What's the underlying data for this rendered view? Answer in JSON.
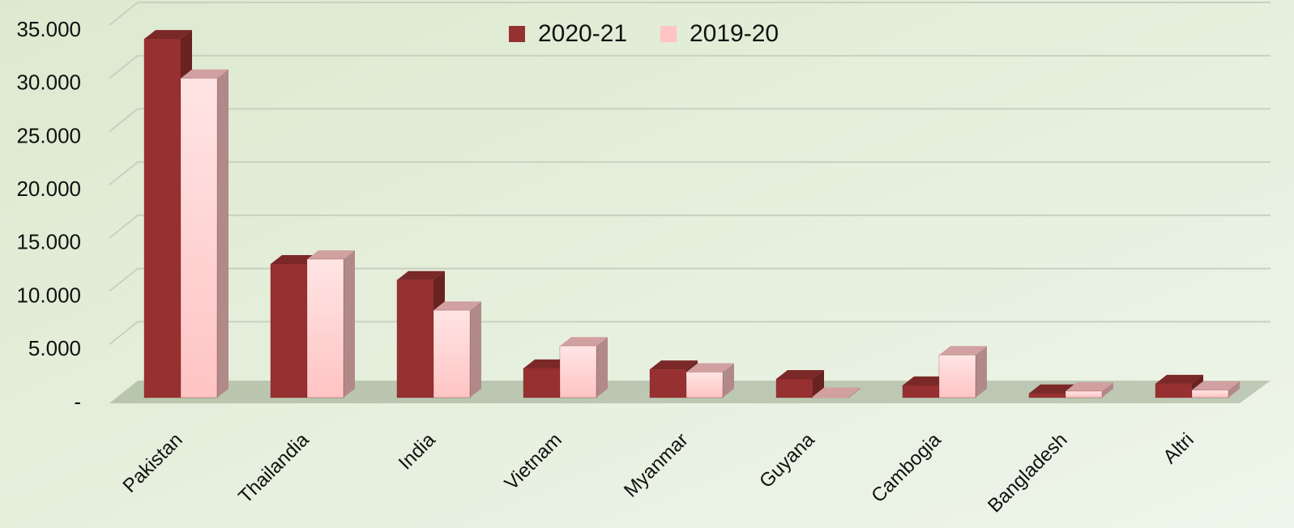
{
  "chart_data": {
    "type": "bar3d",
    "categories": [
      "Pakistan",
      "Thailandia",
      "India",
      "Vietnam",
      "Myanmar",
      "Guyana",
      "Cambogia",
      "Bangladesh",
      "Altri"
    ],
    "series": [
      {
        "name": "2020-21",
        "color": "#973131",
        "values": [
          33700,
          12550,
          11050,
          2750,
          2650,
          1750,
          1150,
          400,
          1300
        ]
      },
      {
        "name": "2019-20",
        "color": "#ffc4c4",
        "values": [
          30000,
          13000,
          8200,
          4850,
          2400,
          100,
          4000,
          600,
          700
        ]
      }
    ],
    "ylim": [
      0,
      35000
    ],
    "yticks": [
      {
        "value": 0,
        "label": "-"
      },
      {
        "value": 5000,
        "label": "5.000"
      },
      {
        "value": 10000,
        "label": "10.000"
      },
      {
        "value": 15000,
        "label": "15.000"
      },
      {
        "value": 20000,
        "label": "20.000"
      },
      {
        "value": 25000,
        "label": "25.000"
      },
      {
        "value": 30000,
        "label": "30.000"
      },
      {
        "value": 35000,
        "label": "35.000"
      }
    ],
    "grid": true,
    "legend": "top"
  }
}
